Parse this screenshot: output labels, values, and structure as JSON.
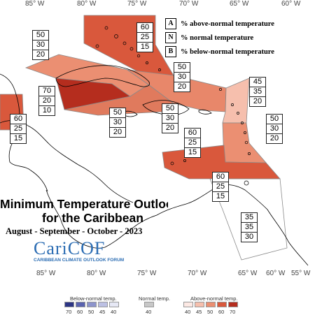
{
  "longitudes": [
    "85° W",
    "80° W",
    "75° W",
    "70° W",
    "65° W",
    "60° W",
    "55° W"
  ],
  "legend": {
    "rows": [
      {
        "key": "A",
        "text": "% above-normal temperature"
      },
      {
        "key": "N",
        "text": "% normal temperature"
      },
      {
        "key": "B",
        "text": "% below-normal temperature"
      }
    ]
  },
  "title": {
    "line1": "Minimum Temperature Outlook",
    "line2": "for the Caribbean",
    "line3": "August - September - October - 2023"
  },
  "logo": {
    "name": "CariCOF",
    "subtitle": "CARIBBEAN CLIMATE OUTLOOK FORUM"
  },
  "probabilities": [
    {
      "id": "bahamas-north",
      "A": "60",
      "N": "25",
      "B": "15"
    },
    {
      "id": "bahamas-west",
      "A": "50",
      "N": "30",
      "B": "20"
    },
    {
      "id": "cuba-west",
      "A": "70",
      "N": "20",
      "B": "10"
    },
    {
      "id": "cuba-east",
      "A": "50",
      "N": "30",
      "B": "20"
    },
    {
      "id": "turks-caicos",
      "A": "50",
      "N": "30",
      "B": "20"
    },
    {
      "id": "hispaniola",
      "A": "50",
      "N": "30",
      "B": "20"
    },
    {
      "id": "leeward-north",
      "A": "45",
      "N": "35",
      "B": "20"
    },
    {
      "id": "leeward-south",
      "A": "50",
      "N": "30",
      "B": "20"
    },
    {
      "id": "caribbean-sea",
      "A": "60",
      "N": "25",
      "B": "15"
    },
    {
      "id": "central-america",
      "A": "60",
      "N": "25",
      "B": "15"
    },
    {
      "id": "trinidad",
      "A": "60",
      "N": "25",
      "B": "15"
    },
    {
      "id": "guianas",
      "A": "35",
      "N": "35",
      "B": "30"
    }
  ],
  "colorbar": {
    "below_label": "Below-normal temp.",
    "normal_label": "Normal temp.",
    "above_label": "Above-normal temp.",
    "below_ticks": [
      "70",
      "60",
      "50",
      "45",
      "40"
    ],
    "normal_tick": "40",
    "above_ticks": [
      "40",
      "45",
      "50",
      "60",
      "70"
    ],
    "below_colors": [
      "#2c3585",
      "#5a63b0",
      "#8d94cc",
      "#bcc0e3",
      "#e6e8f5"
    ],
    "normal_color": "#c8c8c8",
    "above_colors": [
      "#fde9e4",
      "#f6bfad",
      "#eb8f72",
      "#d9583c",
      "#b52d1e"
    ]
  }
}
